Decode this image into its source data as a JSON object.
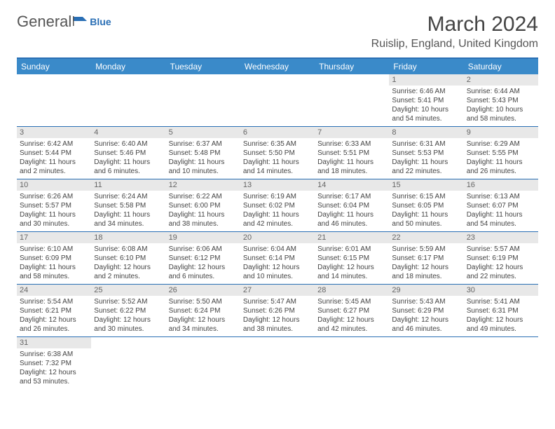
{
  "logo": {
    "part1": "General",
    "part2": "Blue"
  },
  "title": "March 2024",
  "location": "Ruislip, England, United Kingdom",
  "colors": {
    "header_bg": "#3a8ac9",
    "header_border": "#2a6fb5",
    "daynum_bg": "#e8e8e8",
    "row_border": "#2a6fb5",
    "text": "#444444"
  },
  "weekdays": [
    "Sunday",
    "Monday",
    "Tuesday",
    "Wednesday",
    "Thursday",
    "Friday",
    "Saturday"
  ],
  "weeks": [
    [
      null,
      null,
      null,
      null,
      null,
      {
        "d": "1",
        "sr": "Sunrise: 6:46 AM",
        "ss": "Sunset: 5:41 PM",
        "dl": "Daylight: 10 hours and 54 minutes."
      },
      {
        "d": "2",
        "sr": "Sunrise: 6:44 AM",
        "ss": "Sunset: 5:43 PM",
        "dl": "Daylight: 10 hours and 58 minutes."
      }
    ],
    [
      {
        "d": "3",
        "sr": "Sunrise: 6:42 AM",
        "ss": "Sunset: 5:44 PM",
        "dl": "Daylight: 11 hours and 2 minutes."
      },
      {
        "d": "4",
        "sr": "Sunrise: 6:40 AM",
        "ss": "Sunset: 5:46 PM",
        "dl": "Daylight: 11 hours and 6 minutes."
      },
      {
        "d": "5",
        "sr": "Sunrise: 6:37 AM",
        "ss": "Sunset: 5:48 PM",
        "dl": "Daylight: 11 hours and 10 minutes."
      },
      {
        "d": "6",
        "sr": "Sunrise: 6:35 AM",
        "ss": "Sunset: 5:50 PM",
        "dl": "Daylight: 11 hours and 14 minutes."
      },
      {
        "d": "7",
        "sr": "Sunrise: 6:33 AM",
        "ss": "Sunset: 5:51 PM",
        "dl": "Daylight: 11 hours and 18 minutes."
      },
      {
        "d": "8",
        "sr": "Sunrise: 6:31 AM",
        "ss": "Sunset: 5:53 PM",
        "dl": "Daylight: 11 hours and 22 minutes."
      },
      {
        "d": "9",
        "sr": "Sunrise: 6:29 AM",
        "ss": "Sunset: 5:55 PM",
        "dl": "Daylight: 11 hours and 26 minutes."
      }
    ],
    [
      {
        "d": "10",
        "sr": "Sunrise: 6:26 AM",
        "ss": "Sunset: 5:57 PM",
        "dl": "Daylight: 11 hours and 30 minutes."
      },
      {
        "d": "11",
        "sr": "Sunrise: 6:24 AM",
        "ss": "Sunset: 5:58 PM",
        "dl": "Daylight: 11 hours and 34 minutes."
      },
      {
        "d": "12",
        "sr": "Sunrise: 6:22 AM",
        "ss": "Sunset: 6:00 PM",
        "dl": "Daylight: 11 hours and 38 minutes."
      },
      {
        "d": "13",
        "sr": "Sunrise: 6:19 AM",
        "ss": "Sunset: 6:02 PM",
        "dl": "Daylight: 11 hours and 42 minutes."
      },
      {
        "d": "14",
        "sr": "Sunrise: 6:17 AM",
        "ss": "Sunset: 6:04 PM",
        "dl": "Daylight: 11 hours and 46 minutes."
      },
      {
        "d": "15",
        "sr": "Sunrise: 6:15 AM",
        "ss": "Sunset: 6:05 PM",
        "dl": "Daylight: 11 hours and 50 minutes."
      },
      {
        "d": "16",
        "sr": "Sunrise: 6:13 AM",
        "ss": "Sunset: 6:07 PM",
        "dl": "Daylight: 11 hours and 54 minutes."
      }
    ],
    [
      {
        "d": "17",
        "sr": "Sunrise: 6:10 AM",
        "ss": "Sunset: 6:09 PM",
        "dl": "Daylight: 11 hours and 58 minutes."
      },
      {
        "d": "18",
        "sr": "Sunrise: 6:08 AM",
        "ss": "Sunset: 6:10 PM",
        "dl": "Daylight: 12 hours and 2 minutes."
      },
      {
        "d": "19",
        "sr": "Sunrise: 6:06 AM",
        "ss": "Sunset: 6:12 PM",
        "dl": "Daylight: 12 hours and 6 minutes."
      },
      {
        "d": "20",
        "sr": "Sunrise: 6:04 AM",
        "ss": "Sunset: 6:14 PM",
        "dl": "Daylight: 12 hours and 10 minutes."
      },
      {
        "d": "21",
        "sr": "Sunrise: 6:01 AM",
        "ss": "Sunset: 6:15 PM",
        "dl": "Daylight: 12 hours and 14 minutes."
      },
      {
        "d": "22",
        "sr": "Sunrise: 5:59 AM",
        "ss": "Sunset: 6:17 PM",
        "dl": "Daylight: 12 hours and 18 minutes."
      },
      {
        "d": "23",
        "sr": "Sunrise: 5:57 AM",
        "ss": "Sunset: 6:19 PM",
        "dl": "Daylight: 12 hours and 22 minutes."
      }
    ],
    [
      {
        "d": "24",
        "sr": "Sunrise: 5:54 AM",
        "ss": "Sunset: 6:21 PM",
        "dl": "Daylight: 12 hours and 26 minutes."
      },
      {
        "d": "25",
        "sr": "Sunrise: 5:52 AM",
        "ss": "Sunset: 6:22 PM",
        "dl": "Daylight: 12 hours and 30 minutes."
      },
      {
        "d": "26",
        "sr": "Sunrise: 5:50 AM",
        "ss": "Sunset: 6:24 PM",
        "dl": "Daylight: 12 hours and 34 minutes."
      },
      {
        "d": "27",
        "sr": "Sunrise: 5:47 AM",
        "ss": "Sunset: 6:26 PM",
        "dl": "Daylight: 12 hours and 38 minutes."
      },
      {
        "d": "28",
        "sr": "Sunrise: 5:45 AM",
        "ss": "Sunset: 6:27 PM",
        "dl": "Daylight: 12 hours and 42 minutes."
      },
      {
        "d": "29",
        "sr": "Sunrise: 5:43 AM",
        "ss": "Sunset: 6:29 PM",
        "dl": "Daylight: 12 hours and 46 minutes."
      },
      {
        "d": "30",
        "sr": "Sunrise: 5:41 AM",
        "ss": "Sunset: 6:31 PM",
        "dl": "Daylight: 12 hours and 49 minutes."
      }
    ],
    [
      {
        "d": "31",
        "sr": "Sunrise: 6:38 AM",
        "ss": "Sunset: 7:32 PM",
        "dl": "Daylight: 12 hours and 53 minutes."
      },
      null,
      null,
      null,
      null,
      null,
      null
    ]
  ]
}
